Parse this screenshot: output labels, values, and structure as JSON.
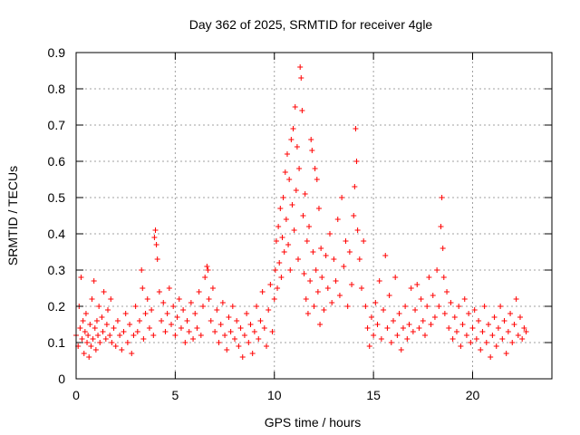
{
  "chart_data": {
    "type": "scatter",
    "title": "Day 362 of 2025, SRMTID for receiver 4gle",
    "xlabel": "GPS time / hours",
    "ylabel": "SRMTID / TECUs",
    "xlim": [
      0,
      24
    ],
    "ylim": [
      0,
      0.9
    ],
    "xticks": [
      0,
      5,
      10,
      15,
      20
    ],
    "yticks": [
      0,
      0.1,
      0.2,
      0.3,
      0.4,
      0.5,
      0.6,
      0.7,
      0.8,
      0.9
    ],
    "xtick_labels": [
      "0",
      "5",
      "10",
      "15",
      "20"
    ],
    "ytick_labels": [
      "0",
      "0.1",
      "0.2",
      "0.3",
      "0.4",
      "0.5",
      "0.6",
      "0.7",
      "0.8",
      "0.9"
    ],
    "grid": true,
    "marker": "+",
    "series": [
      {
        "name": "SRMTID",
        "color": "#ff0000",
        "points": [
          [
            0.0,
            0.12
          ],
          [
            0.1,
            0.09
          ],
          [
            0.15,
            0.2
          ],
          [
            0.2,
            0.14
          ],
          [
            0.25,
            0.28
          ],
          [
            0.3,
            0.11
          ],
          [
            0.35,
            0.16
          ],
          [
            0.4,
            0.07
          ],
          [
            0.45,
            0.13
          ],
          [
            0.5,
            0.18
          ],
          [
            0.55,
            0.1
          ],
          [
            0.6,
            0.12
          ],
          [
            0.65,
            0.06
          ],
          [
            0.7,
            0.15
          ],
          [
            0.75,
            0.09
          ],
          [
            0.8,
            0.22
          ],
          [
            0.85,
            0.11
          ],
          [
            0.9,
            0.27
          ],
          [
            0.95,
            0.14
          ],
          [
            1.0,
            0.08
          ],
          [
            1.05,
            0.16
          ],
          [
            1.1,
            0.12
          ],
          [
            1.15,
            0.2
          ],
          [
            1.2,
            0.1
          ],
          [
            1.3,
            0.17
          ],
          [
            1.35,
            0.13
          ],
          [
            1.4,
            0.24
          ],
          [
            1.5,
            0.11
          ],
          [
            1.55,
            0.15
          ],
          [
            1.6,
            0.19
          ],
          [
            1.7,
            0.12
          ],
          [
            1.75,
            0.22
          ],
          [
            1.8,
            0.1
          ],
          [
            1.9,
            0.14
          ],
          [
            2.0,
            0.09
          ],
          [
            2.1,
            0.16
          ],
          [
            2.2,
            0.12
          ],
          [
            2.3,
            0.08
          ],
          [
            2.4,
            0.13
          ],
          [
            2.5,
            0.18
          ],
          [
            2.6,
            0.1
          ],
          [
            2.7,
            0.15
          ],
          [
            2.8,
            0.07
          ],
          [
            2.9,
            0.12
          ],
          [
            3.0,
            0.2
          ],
          [
            3.1,
            0.13
          ],
          [
            3.2,
            0.16
          ],
          [
            3.3,
            0.3
          ],
          [
            3.35,
            0.25
          ],
          [
            3.4,
            0.11
          ],
          [
            3.5,
            0.18
          ],
          [
            3.6,
            0.22
          ],
          [
            3.7,
            0.14
          ],
          [
            3.8,
            0.19
          ],
          [
            3.9,
            0.12
          ],
          [
            3.95,
            0.39
          ],
          [
            4.0,
            0.41
          ],
          [
            4.05,
            0.37
          ],
          [
            4.1,
            0.33
          ],
          [
            4.2,
            0.24
          ],
          [
            4.3,
            0.16
          ],
          [
            4.4,
            0.21
          ],
          [
            4.5,
            0.13
          ],
          [
            4.6,
            0.18
          ],
          [
            4.7,
            0.25
          ],
          [
            4.8,
            0.15
          ],
          [
            4.9,
            0.2
          ],
          [
            5.0,
            0.12
          ],
          [
            5.1,
            0.17
          ],
          [
            5.2,
            0.22
          ],
          [
            5.3,
            0.14
          ],
          [
            5.4,
            0.19
          ],
          [
            5.5,
            0.1
          ],
          [
            5.6,
            0.16
          ],
          [
            5.7,
            0.13
          ],
          [
            5.8,
            0.21
          ],
          [
            5.9,
            0.11
          ],
          [
            6.0,
            0.18
          ],
          [
            6.1,
            0.14
          ],
          [
            6.2,
            0.24
          ],
          [
            6.3,
            0.12
          ],
          [
            6.4,
            0.2
          ],
          [
            6.5,
            0.28
          ],
          [
            6.6,
            0.31
          ],
          [
            6.65,
            0.3
          ],
          [
            6.7,
            0.22
          ],
          [
            6.8,
            0.16
          ],
          [
            6.9,
            0.25
          ],
          [
            7.0,
            0.13
          ],
          [
            7.1,
            0.19
          ],
          [
            7.2,
            0.1
          ],
          [
            7.3,
            0.15
          ],
          [
            7.4,
            0.21
          ],
          [
            7.5,
            0.12
          ],
          [
            7.6,
            0.08
          ],
          [
            7.7,
            0.17
          ],
          [
            7.8,
            0.13
          ],
          [
            7.9,
            0.2
          ],
          [
            8.0,
            0.11
          ],
          [
            8.1,
            0.16
          ],
          [
            8.2,
            0.09
          ],
          [
            8.3,
            0.14
          ],
          [
            8.4,
            0.06
          ],
          [
            8.5,
            0.12
          ],
          [
            8.6,
            0.18
          ],
          [
            8.7,
            0.1
          ],
          [
            8.8,
            0.15
          ],
          [
            8.9,
            0.07
          ],
          [
            9.0,
            0.13
          ],
          [
            9.1,
            0.2
          ],
          [
            9.2,
            0.11
          ],
          [
            9.3,
            0.16
          ],
          [
            9.4,
            0.24
          ],
          [
            9.5,
            0.14
          ],
          [
            9.6,
            0.09
          ],
          [
            9.7,
            0.19
          ],
          [
            9.8,
            0.26
          ],
          [
            9.9,
            0.13
          ],
          [
            10.0,
            0.22
          ],
          [
            10.05,
            0.3
          ],
          [
            10.1,
            0.38
          ],
          [
            10.15,
            0.25
          ],
          [
            10.2,
            0.42
          ],
          [
            10.25,
            0.32
          ],
          [
            10.3,
            0.47
          ],
          [
            10.35,
            0.28
          ],
          [
            10.4,
            0.39
          ],
          [
            10.45,
            0.5
          ],
          [
            10.5,
            0.35
          ],
          [
            10.55,
            0.57
          ],
          [
            10.6,
            0.44
          ],
          [
            10.65,
            0.62
          ],
          [
            10.7,
            0.37
          ],
          [
            10.75,
            0.55
          ],
          [
            10.8,
            0.3
          ],
          [
            10.85,
            0.66
          ],
          [
            10.9,
            0.48
          ],
          [
            10.95,
            0.69
          ],
          [
            11.0,
            0.41
          ],
          [
            11.05,
            0.75
          ],
          [
            11.1,
            0.52
          ],
          [
            11.15,
            0.64
          ],
          [
            11.2,
            0.33
          ],
          [
            11.25,
            0.58
          ],
          [
            11.3,
            0.86
          ],
          [
            11.35,
            0.83
          ],
          [
            11.4,
            0.74
          ],
          [
            11.45,
            0.45
          ],
          [
            11.5,
            0.29
          ],
          [
            11.55,
            0.51
          ],
          [
            11.6,
            0.22
          ],
          [
            11.65,
            0.38
          ],
          [
            11.7,
            0.18
          ],
          [
            11.75,
            0.42
          ],
          [
            11.8,
            0.27
          ],
          [
            11.85,
            0.66
          ],
          [
            11.9,
            0.63
          ],
          [
            11.95,
            0.35
          ],
          [
            12.0,
            0.2
          ],
          [
            12.05,
            0.58
          ],
          [
            12.1,
            0.3
          ],
          [
            12.15,
            0.55
          ],
          [
            12.2,
            0.24
          ],
          [
            12.25,
            0.47
          ],
          [
            12.3,
            0.15
          ],
          [
            12.35,
            0.36
          ],
          [
            12.4,
            0.28
          ],
          [
            12.5,
            0.19
          ],
          [
            12.6,
            0.34
          ],
          [
            12.7,
            0.25
          ],
          [
            12.8,
            0.4
          ],
          [
            12.9,
            0.21
          ],
          [
            13.0,
            0.33
          ],
          [
            13.1,
            0.27
          ],
          [
            13.2,
            0.44
          ],
          [
            13.3,
            0.23
          ],
          [
            13.4,
            0.5
          ],
          [
            13.5,
            0.31
          ],
          [
            13.6,
            0.38
          ],
          [
            13.7,
            0.2
          ],
          [
            13.8,
            0.35
          ],
          [
            13.9,
            0.26
          ],
          [
            14.0,
            0.45
          ],
          [
            14.05,
            0.53
          ],
          [
            14.1,
            0.69
          ],
          [
            14.15,
            0.6
          ],
          [
            14.2,
            0.41
          ],
          [
            14.3,
            0.33
          ],
          [
            14.4,
            0.25
          ],
          [
            14.5,
            0.38
          ],
          [
            14.6,
            0.2
          ],
          [
            14.7,
            0.14
          ],
          [
            14.8,
            0.09
          ],
          [
            14.9,
            0.17
          ],
          [
            15.0,
            0.12
          ],
          [
            15.1,
            0.21
          ],
          [
            15.2,
            0.15
          ],
          [
            15.3,
            0.27
          ],
          [
            15.4,
            0.11
          ],
          [
            15.5,
            0.19
          ],
          [
            15.6,
            0.34
          ],
          [
            15.7,
            0.14
          ],
          [
            15.8,
            0.23
          ],
          [
            15.9,
            0.1
          ],
          [
            16.0,
            0.16
          ],
          [
            16.1,
            0.28
          ],
          [
            16.2,
            0.12
          ],
          [
            16.3,
            0.18
          ],
          [
            16.4,
            0.08
          ],
          [
            16.5,
            0.14
          ],
          [
            16.6,
            0.2
          ],
          [
            16.7,
            0.11
          ],
          [
            16.8,
            0.15
          ],
          [
            16.9,
            0.25
          ],
          [
            17.0,
            0.13
          ],
          [
            17.1,
            0.19
          ],
          [
            17.2,
            0.26
          ],
          [
            17.3,
            0.14
          ],
          [
            17.4,
            0.22
          ],
          [
            17.5,
            0.16
          ],
          [
            17.6,
            0.12
          ],
          [
            17.7,
            0.2
          ],
          [
            17.8,
            0.28
          ],
          [
            17.9,
            0.15
          ],
          [
            18.0,
            0.23
          ],
          [
            18.1,
            0.17
          ],
          [
            18.2,
            0.3
          ],
          [
            18.3,
            0.2
          ],
          [
            18.4,
            0.42
          ],
          [
            18.45,
            0.5
          ],
          [
            18.5,
            0.36
          ],
          [
            18.55,
            0.28
          ],
          [
            18.6,
            0.18
          ],
          [
            18.7,
            0.24
          ],
          [
            18.8,
            0.14
          ],
          [
            18.9,
            0.21
          ],
          [
            19.0,
            0.11
          ],
          [
            19.1,
            0.17
          ],
          [
            19.2,
            0.13
          ],
          [
            19.3,
            0.2
          ],
          [
            19.4,
            0.09
          ],
          [
            19.5,
            0.15
          ],
          [
            19.6,
            0.22
          ],
          [
            19.7,
            0.12
          ],
          [
            19.8,
            0.18
          ],
          [
            19.9,
            0.1
          ],
          [
            20.0,
            0.14
          ],
          [
            20.1,
            0.19
          ],
          [
            20.2,
            0.11
          ],
          [
            20.3,
            0.16
          ],
          [
            20.4,
            0.08
          ],
          [
            20.5,
            0.13
          ],
          [
            20.6,
            0.2
          ],
          [
            20.7,
            0.1
          ],
          [
            20.8,
            0.15
          ],
          [
            20.9,
            0.06
          ],
          [
            21.0,
            0.12
          ],
          [
            21.1,
            0.17
          ],
          [
            21.2,
            0.09
          ],
          [
            21.3,
            0.14
          ],
          [
            21.4,
            0.2
          ],
          [
            21.5,
            0.11
          ],
          [
            21.6,
            0.16
          ],
          [
            21.7,
            0.07
          ],
          [
            21.8,
            0.13
          ],
          [
            21.9,
            0.18
          ],
          [
            22.0,
            0.1
          ],
          [
            22.1,
            0.15
          ],
          [
            22.2,
            0.22
          ],
          [
            22.3,
            0.12
          ],
          [
            22.4,
            0.17
          ],
          [
            22.5,
            0.11
          ],
          [
            22.6,
            0.14
          ],
          [
            22.7,
            0.13
          ]
        ]
      }
    ]
  }
}
